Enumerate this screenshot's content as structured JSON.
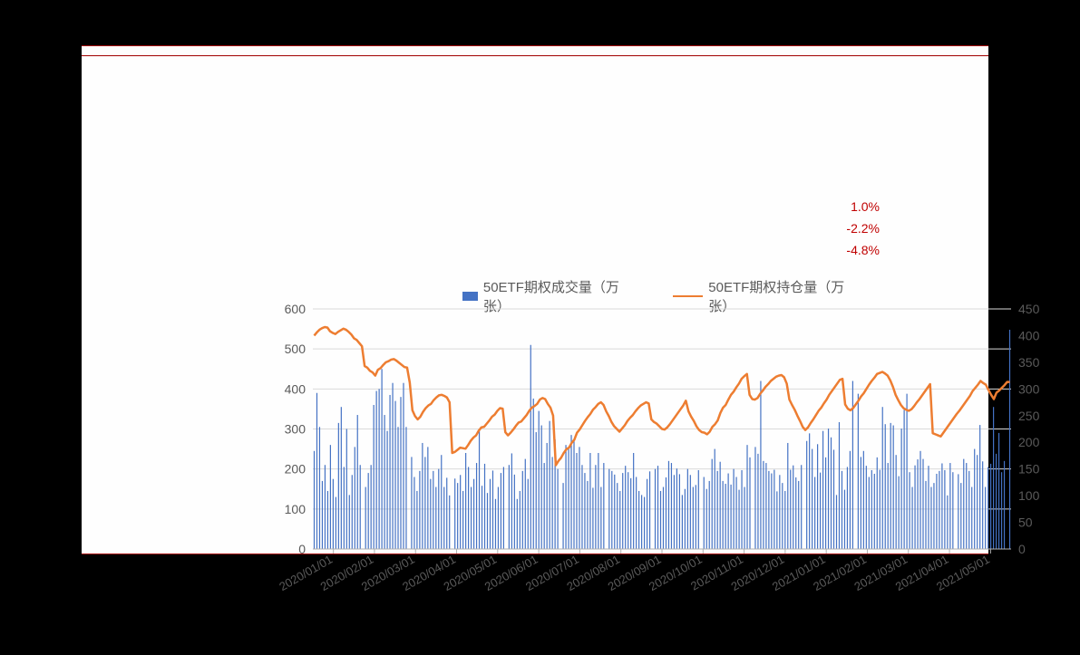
{
  "percent_labels": [
    "1.0%",
    "-2.2%",
    "-4.8%"
  ],
  "percent_label_color": "#c00000",
  "chart": {
    "type": "bar-line-dual-axis",
    "background_color": "#fefefe",
    "legend": {
      "items": [
        {
          "label": "50ETF期权成交量（万张）",
          "kind": "bar",
          "color": "#4472c4"
        },
        {
          "label": "50ETF期权持仓量（万张）",
          "kind": "line",
          "color": "#ed7d31"
        }
      ],
      "fontsize": 15,
      "text_color": "#5a5a5a"
    },
    "y_left": {
      "min": 0,
      "max": 600,
      "step": 100,
      "ticks": [
        0,
        100,
        200,
        300,
        400,
        500,
        600
      ]
    },
    "y_right": {
      "min": 0,
      "max": 450,
      "step": 50,
      "ticks": [
        0,
        50,
        100,
        150,
        200,
        250,
        300,
        350,
        400,
        450
      ]
    },
    "axis_fontsize": 14,
    "axis_text_color": "#5a5a5a",
    "gridline_color": "#d9d9d9",
    "baseline_color": "#b0b0b0",
    "bar": {
      "color": "#4472c4",
      "width": 1.2
    },
    "line": {
      "color": "#ed7d31",
      "width": 2.5
    },
    "x_labels": [
      "2020/01/01",
      "2020/02/01",
      "2020/03/01",
      "2020/04/01",
      "2020/05/01",
      "2020/06/01",
      "2020/07/01",
      "2020/08/01",
      "2020/09/01",
      "2020/10/01",
      "2020/11/01",
      "2020/12/01",
      "2021/01/01",
      "2021/02/01",
      "2021/03/01",
      "2021/04/01",
      "2021/05/01"
    ],
    "x_label_rotation": -30,
    "x_label_fontsize": 13,
    "series_bar": [
      245,
      390,
      305,
      170,
      210,
      145,
      260,
      175,
      130,
      315,
      355,
      205,
      300,
      135,
      185,
      255,
      335,
      210,
      0,
      155,
      190,
      210,
      360,
      395,
      400,
      450,
      335,
      295,
      385,
      415,
      370,
      305,
      380,
      415,
      305,
      0,
      230,
      180,
      145,
      195,
      265,
      230,
      255,
      175,
      195,
      155,
      200,
      235,
      155,
      178,
      134,
      0,
      176,
      165,
      185,
      145,
      240,
      205,
      155,
      175,
      215,
      295,
      158,
      213,
      140,
      175,
      196,
      125,
      155,
      190,
      205,
      0,
      210,
      239,
      186,
      125,
      145,
      195,
      225,
      175,
      510,
      376,
      292,
      345,
      309,
      215,
      265,
      320,
      230,
      274,
      200,
      0,
      165,
      260,
      255,
      285,
      270,
      240,
      255,
      210,
      190,
      170,
      240,
      153,
      210,
      240,
      155,
      215,
      0,
      200,
      195,
      186,
      165,
      145,
      190,
      208,
      192,
      177,
      240,
      180,
      145,
      135,
      130,
      175,
      194,
      0,
      200,
      208,
      145,
      155,
      179,
      220,
      215,
      185,
      201,
      187,
      135,
      150,
      200,
      185,
      155,
      160,
      197,
      0,
      180,
      150,
      170,
      225,
      250,
      195,
      218,
      170,
      163,
      189,
      161,
      200,
      180,
      148,
      197,
      155,
      260,
      229,
      0,
      255,
      238,
      420,
      220,
      215,
      195,
      189,
      198,
      144,
      185,
      165,
      145,
      265,
      198,
      209,
      179,
      170,
      210,
      0,
      270,
      289,
      250,
      180,
      262,
      191,
      295,
      229,
      301,
      279,
      248,
      135,
      317,
      195,
      148,
      205,
      245,
      420,
      0,
      388,
      230,
      245,
      208,
      180,
      197,
      188,
      229,
      198,
      355,
      312,
      215,
      315,
      309,
      235,
      182,
      301,
      348,
      388,
      192,
      155,
      209,
      224,
      245,
      225,
      170,
      208,
      155,
      165,
      188,
      195,
      214,
      197,
      134,
      215,
      192,
      0,
      187,
      165,
      225,
      215,
      195,
      155,
      250,
      235,
      310,
      219,
      155,
      205,
      213,
      355,
      238,
      290,
      192,
      220,
      0,
      548
    ],
    "series_line": [
      400,
      406,
      411,
      414,
      416,
      415,
      408,
      405,
      403,
      407,
      410,
      413,
      411,
      407,
      402,
      395,
      392,
      386,
      380,
      343,
      340,
      334,
      331,
      325,
      336,
      339,
      345,
      350,
      352,
      355,
      356,
      353,
      349,
      345,
      341,
      340,
      312,
      260,
      249,
      243,
      248,
      257,
      264,
      269,
      272,
      279,
      284,
      288,
      289,
      287,
      284,
      275,
      180,
      182,
      186,
      190,
      189,
      188,
      195,
      203,
      209,
      213,
      222,
      228,
      229,
      235,
      241,
      248,
      252,
      259,
      264,
      263,
      219,
      213,
      218,
      224,
      231,
      237,
      239,
      245,
      251,
      259,
      265,
      268,
      272,
      280,
      283,
      281,
      272,
      265,
      250,
      157,
      165,
      171,
      180,
      187,
      190,
      199,
      205,
      218,
      224,
      232,
      240,
      247,
      253,
      261,
      266,
      272,
      275,
      270,
      258,
      249,
      238,
      230,
      225,
      220,
      226,
      232,
      240,
      246,
      251,
      258,
      264,
      269,
      272,
      275,
      273,
      243,
      238,
      235,
      230,
      225,
      224,
      228,
      234,
      241,
      248,
      255,
      262,
      269,
      278,
      258,
      248,
      240,
      230,
      223,
      219,
      218,
      215,
      220,
      229,
      234,
      241,
      255,
      265,
      270,
      280,
      289,
      295,
      303,
      310,
      319,
      324,
      328,
      289,
      281,
      280,
      283,
      291,
      297,
      304,
      309,
      315,
      319,
      323,
      325,
      326,
      322,
      310,
      280,
      270,
      261,
      250,
      240,
      229,
      223,
      228,
      236,
      243,
      251,
      259,
      265,
      273,
      280,
      289,
      296,
      303,
      310,
      317,
      319,
      271,
      263,
      260,
      264,
      271,
      278,
      286,
      292,
      300,
      308,
      315,
      321,
      328,
      330,
      332,
      329,
      325,
      316,
      304,
      289,
      279,
      270,
      264,
      261,
      259,
      262,
      268,
      275,
      281,
      288,
      295,
      302,
      309,
      217,
      215,
      213,
      211,
      218,
      225,
      232,
      239,
      246,
      253,
      259,
      266,
      273,
      280,
      287,
      296,
      302,
      308,
      315,
      311,
      308,
      298,
      289,
      281,
      293,
      297,
      302,
      307,
      313,
      313
    ]
  }
}
